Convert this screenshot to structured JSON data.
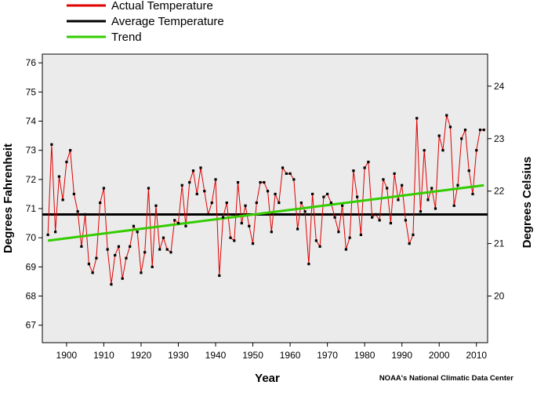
{
  "chart_data": {
    "type": "line",
    "legend": [
      {
        "label": "Actual Temperature",
        "color": "#e00000"
      },
      {
        "label": "Average Temperature",
        "color": "#000000"
      },
      {
        "label": "Trend",
        "color": "#33cc00"
      }
    ],
    "xlabel": "Year",
    "ylabel": "Degrees Fahrenheit",
    "y2label": "Degrees Celsius",
    "credit": "NOAA's National Climatic Data Center",
    "x_ticks": [
      "1900",
      "1910",
      "1920",
      "1930",
      "1940",
      "1950",
      "1960",
      "1970",
      "1980",
      "1990",
      "2000",
      "2010"
    ],
    "y_ticks": [
      "67",
      "68",
      "69",
      "70",
      "71",
      "72",
      "73",
      "74",
      "75",
      "76"
    ],
    "y2_ticks": [
      "20",
      "21",
      "22",
      "23",
      "24"
    ],
    "xlim": [
      1893.5,
      2013
    ],
    "ylim": [
      66.4,
      76.3
    ],
    "grid": false,
    "legend_position": "top-left",
    "plot_background": "#ebebeb",
    "average": 70.8,
    "trend": {
      "x": [
        1895,
        2012
      ],
      "y": [
        69.9,
        71.8
      ]
    },
    "series": [
      {
        "name": "Actual Temperature",
        "x": [
          1895,
          1896,
          1897,
          1898,
          1899,
          1900,
          1901,
          1902,
          1903,
          1904,
          1905,
          1906,
          1907,
          1908,
          1909,
          1910,
          1911,
          1912,
          1913,
          1914,
          1915,
          1916,
          1917,
          1918,
          1919,
          1920,
          1921,
          1922,
          1923,
          1924,
          1925,
          1926,
          1927,
          1928,
          1929,
          1930,
          1931,
          1932,
          1933,
          1934,
          1935,
          1936,
          1937,
          1938,
          1939,
          1940,
          1941,
          1942,
          1943,
          1944,
          1945,
          1946,
          1947,
          1948,
          1949,
          1950,
          1951,
          1952,
          1953,
          1954,
          1955,
          1956,
          1957,
          1958,
          1959,
          1960,
          1961,
          1962,
          1963,
          1964,
          1965,
          1966,
          1967,
          1968,
          1969,
          1970,
          1971,
          1972,
          1973,
          1974,
          1975,
          1976,
          1977,
          1978,
          1979,
          1980,
          1981,
          1982,
          1983,
          1984,
          1985,
          1986,
          1987,
          1988,
          1989,
          1990,
          1991,
          1992,
          1993,
          1994,
          1995,
          1996,
          1997,
          1998,
          1999,
          2000,
          2001,
          2002,
          2003,
          2004,
          2005,
          2006,
          2007,
          2008,
          2009,
          2010,
          2011,
          2012
        ],
        "y": [
          70.1,
          73.2,
          70.2,
          72.1,
          71.3,
          72.6,
          73.0,
          71.5,
          70.9,
          69.7,
          70.8,
          69.1,
          68.8,
          69.3,
          71.2,
          71.7,
          69.6,
          68.4,
          69.4,
          69.7,
          68.6,
          69.3,
          69.7,
          70.4,
          70.2,
          68.8,
          69.5,
          71.7,
          69.0,
          71.1,
          69.6,
          70.0,
          69.6,
          69.5,
          70.6,
          70.5,
          71.8,
          70.4,
          71.9,
          72.3,
          71.5,
          72.4,
          71.6,
          70.8,
          71.2,
          72.0,
          68.7,
          70.7,
          71.2,
          70.0,
          69.9,
          71.9,
          70.5,
          71.1,
          70.4,
          69.8,
          71.2,
          71.9,
          71.9,
          71.6,
          70.2,
          71.5,
          71.2,
          72.4,
          72.2,
          72.2,
          72.0,
          70.3,
          71.2,
          70.9,
          69.1,
          71.5,
          69.9,
          69.7,
          71.4,
          71.5,
          71.2,
          70.7,
          70.2,
          71.1,
          69.6,
          70.0,
          72.3,
          71.4,
          70.1,
          72.4,
          72.6,
          70.7,
          70.8,
          70.6,
          72.0,
          71.7,
          70.5,
          72.2,
          71.3,
          71.8,
          70.6,
          69.8,
          70.1,
          74.1,
          70.9,
          73.0,
          71.3,
          71.7,
          71.0,
          73.5,
          73.0,
          74.2,
          73.8,
          71.1,
          71.8,
          73.4,
          73.7,
          72.3,
          71.5,
          73.0,
          73.7,
          73.7
        ]
      }
    ]
  }
}
